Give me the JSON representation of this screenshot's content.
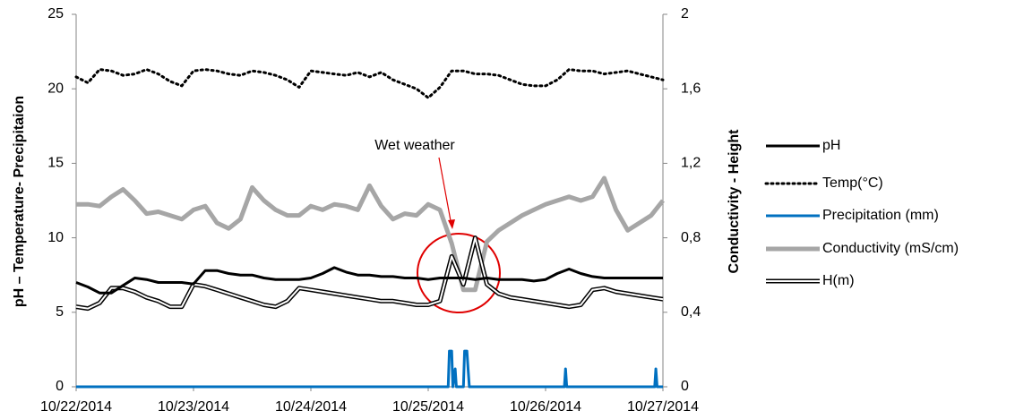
{
  "chart_data": {
    "type": "line",
    "y_label": "pH – Temperature- Precipitaion",
    "y2_label": "Conductivity - Height",
    "annotation": "Wet weather",
    "xlim": [
      0,
      5
    ],
    "xticks": [
      {
        "value": 0,
        "label": "10/22/2014"
      },
      {
        "value": 1,
        "label": "10/23/2014"
      },
      {
        "value": 2,
        "label": "10/24/2014"
      },
      {
        "value": 3,
        "label": "10/25/2014"
      },
      {
        "value": 4,
        "label": "10/26/2014"
      },
      {
        "value": 5,
        "label": "10/27/2014"
      }
    ],
    "ylim": [
      0,
      25
    ],
    "yticks": [
      0,
      5,
      10,
      15,
      20,
      25
    ],
    "y2lim": [
      0,
      2
    ],
    "y2ticks": [
      0,
      {
        "value": 0.4,
        "label": "0,4"
      },
      {
        "value": 0.8,
        "label": "0,8"
      },
      {
        "value": 1.2,
        "label": "1,2"
      },
      {
        "value": 1.6,
        "label": "1,6"
      },
      2
    ],
    "legend": "right",
    "x": [
      0,
      0.1,
      0.2,
      0.3,
      0.4,
      0.5,
      0.6,
      0.7,
      0.8,
      0.9,
      1,
      1.1,
      1.2,
      1.3,
      1.4,
      1.5,
      1.6,
      1.7,
      1.8,
      1.9,
      2,
      2.1,
      2.2,
      2.3,
      2.4,
      2.5,
      2.6,
      2.7,
      2.8,
      2.9,
      3,
      3.1,
      3.2,
      3.3,
      3.4,
      3.5,
      3.6,
      3.7,
      3.8,
      3.9,
      4,
      4.1,
      4.2,
      4.3,
      4.4,
      4.5,
      4.6,
      4.7,
      4.8,
      4.9,
      5
    ],
    "series": [
      {
        "name": "pH",
        "color": "#000000",
        "values": [
          7.0,
          6.7,
          6.3,
          6.3,
          6.8,
          7.3,
          7.2,
          7.0,
          7.0,
          7.0,
          6.9,
          7.8,
          7.8,
          7.6,
          7.5,
          7.5,
          7.3,
          7.2,
          7.2,
          7.2,
          7.3,
          7.6,
          8.0,
          7.7,
          7.5,
          7.5,
          7.4,
          7.4,
          7.3,
          7.3,
          7.2,
          7.3,
          7.3,
          7.3,
          7.2,
          7.3,
          7.2,
          7.2,
          7.2,
          7.1,
          7.2,
          7.6,
          7.9,
          7.6,
          7.4,
          7.3,
          7.3,
          7.3,
          7.3,
          7.3,
          7.3
        ]
      },
      {
        "name": "Temp(°C)",
        "color": "#000000",
        "values": [
          20.8,
          20.4,
          21.3,
          21.2,
          20.9,
          21.0,
          21.3,
          21.0,
          20.5,
          20.2,
          21.2,
          21.3,
          21.2,
          21.0,
          20.9,
          21.2,
          21.1,
          20.9,
          20.6,
          20.1,
          21.2,
          21.1,
          21.0,
          20.9,
          21.1,
          20.8,
          21.1,
          20.6,
          20.3,
          20.0,
          19.4,
          20.1,
          21.2,
          21.2,
          21.0,
          21.0,
          20.9,
          20.6,
          20.3,
          20.2,
          20.2,
          20.6,
          21.3,
          21.2,
          21.2,
          21.0,
          21.1,
          21.2,
          21.0,
          20.8,
          20.6
        ]
      },
      {
        "name": "Precipitation (mm)",
        "color": "#0070c0",
        "x": [
          0,
          3.17,
          3.18,
          3.2,
          3.21,
          3.23,
          3.24,
          3.3,
          3.31,
          3.33,
          3.34,
          3.35,
          4.16,
          4.17,
          4.18,
          4.93,
          4.94,
          4.95,
          5
        ],
        "values": [
          0,
          0,
          2.4,
          2.4,
          0,
          1.2,
          0,
          0,
          2.4,
          2.4,
          1.2,
          0,
          0,
          1.2,
          0,
          0,
          1.2,
          0,
          0
        ]
      },
      {
        "name": "Conductivity (mS/cm)",
        "color": "#a6a6a6",
        "axis": "y2",
        "values": [
          0.98,
          0.98,
          0.97,
          1.02,
          1.06,
          1.0,
          0.93,
          0.94,
          0.92,
          0.9,
          0.95,
          0.97,
          0.88,
          0.85,
          0.9,
          1.07,
          1.0,
          0.95,
          0.92,
          0.92,
          0.97,
          0.95,
          0.98,
          0.97,
          0.95,
          1.08,
          0.97,
          0.9,
          0.93,
          0.92,
          0.98,
          0.95,
          0.77,
          0.52,
          0.52,
          0.78,
          0.84,
          0.88,
          0.92,
          0.95,
          0.98,
          1.0,
          1.02,
          1.0,
          1.02,
          1.12,
          0.95,
          0.84,
          0.88,
          0.92,
          1.0
        ]
      },
      {
        "name": "H(m)",
        "color": "#000000",
        "axis": "y2",
        "values": [
          0.43,
          0.42,
          0.45,
          0.53,
          0.53,
          0.51,
          0.48,
          0.46,
          0.43,
          0.43,
          0.55,
          0.54,
          0.52,
          0.5,
          0.48,
          0.46,
          0.44,
          0.43,
          0.46,
          0.53,
          0.52,
          0.51,
          0.5,
          0.49,
          0.48,
          0.47,
          0.46,
          0.46,
          0.45,
          0.44,
          0.44,
          0.46,
          0.7,
          0.55,
          0.8,
          0.55,
          0.5,
          0.48,
          0.47,
          0.46,
          0.45,
          0.44,
          0.43,
          0.44,
          0.52,
          0.53,
          0.51,
          0.5,
          0.49,
          0.48,
          0.47
        ]
      }
    ]
  }
}
